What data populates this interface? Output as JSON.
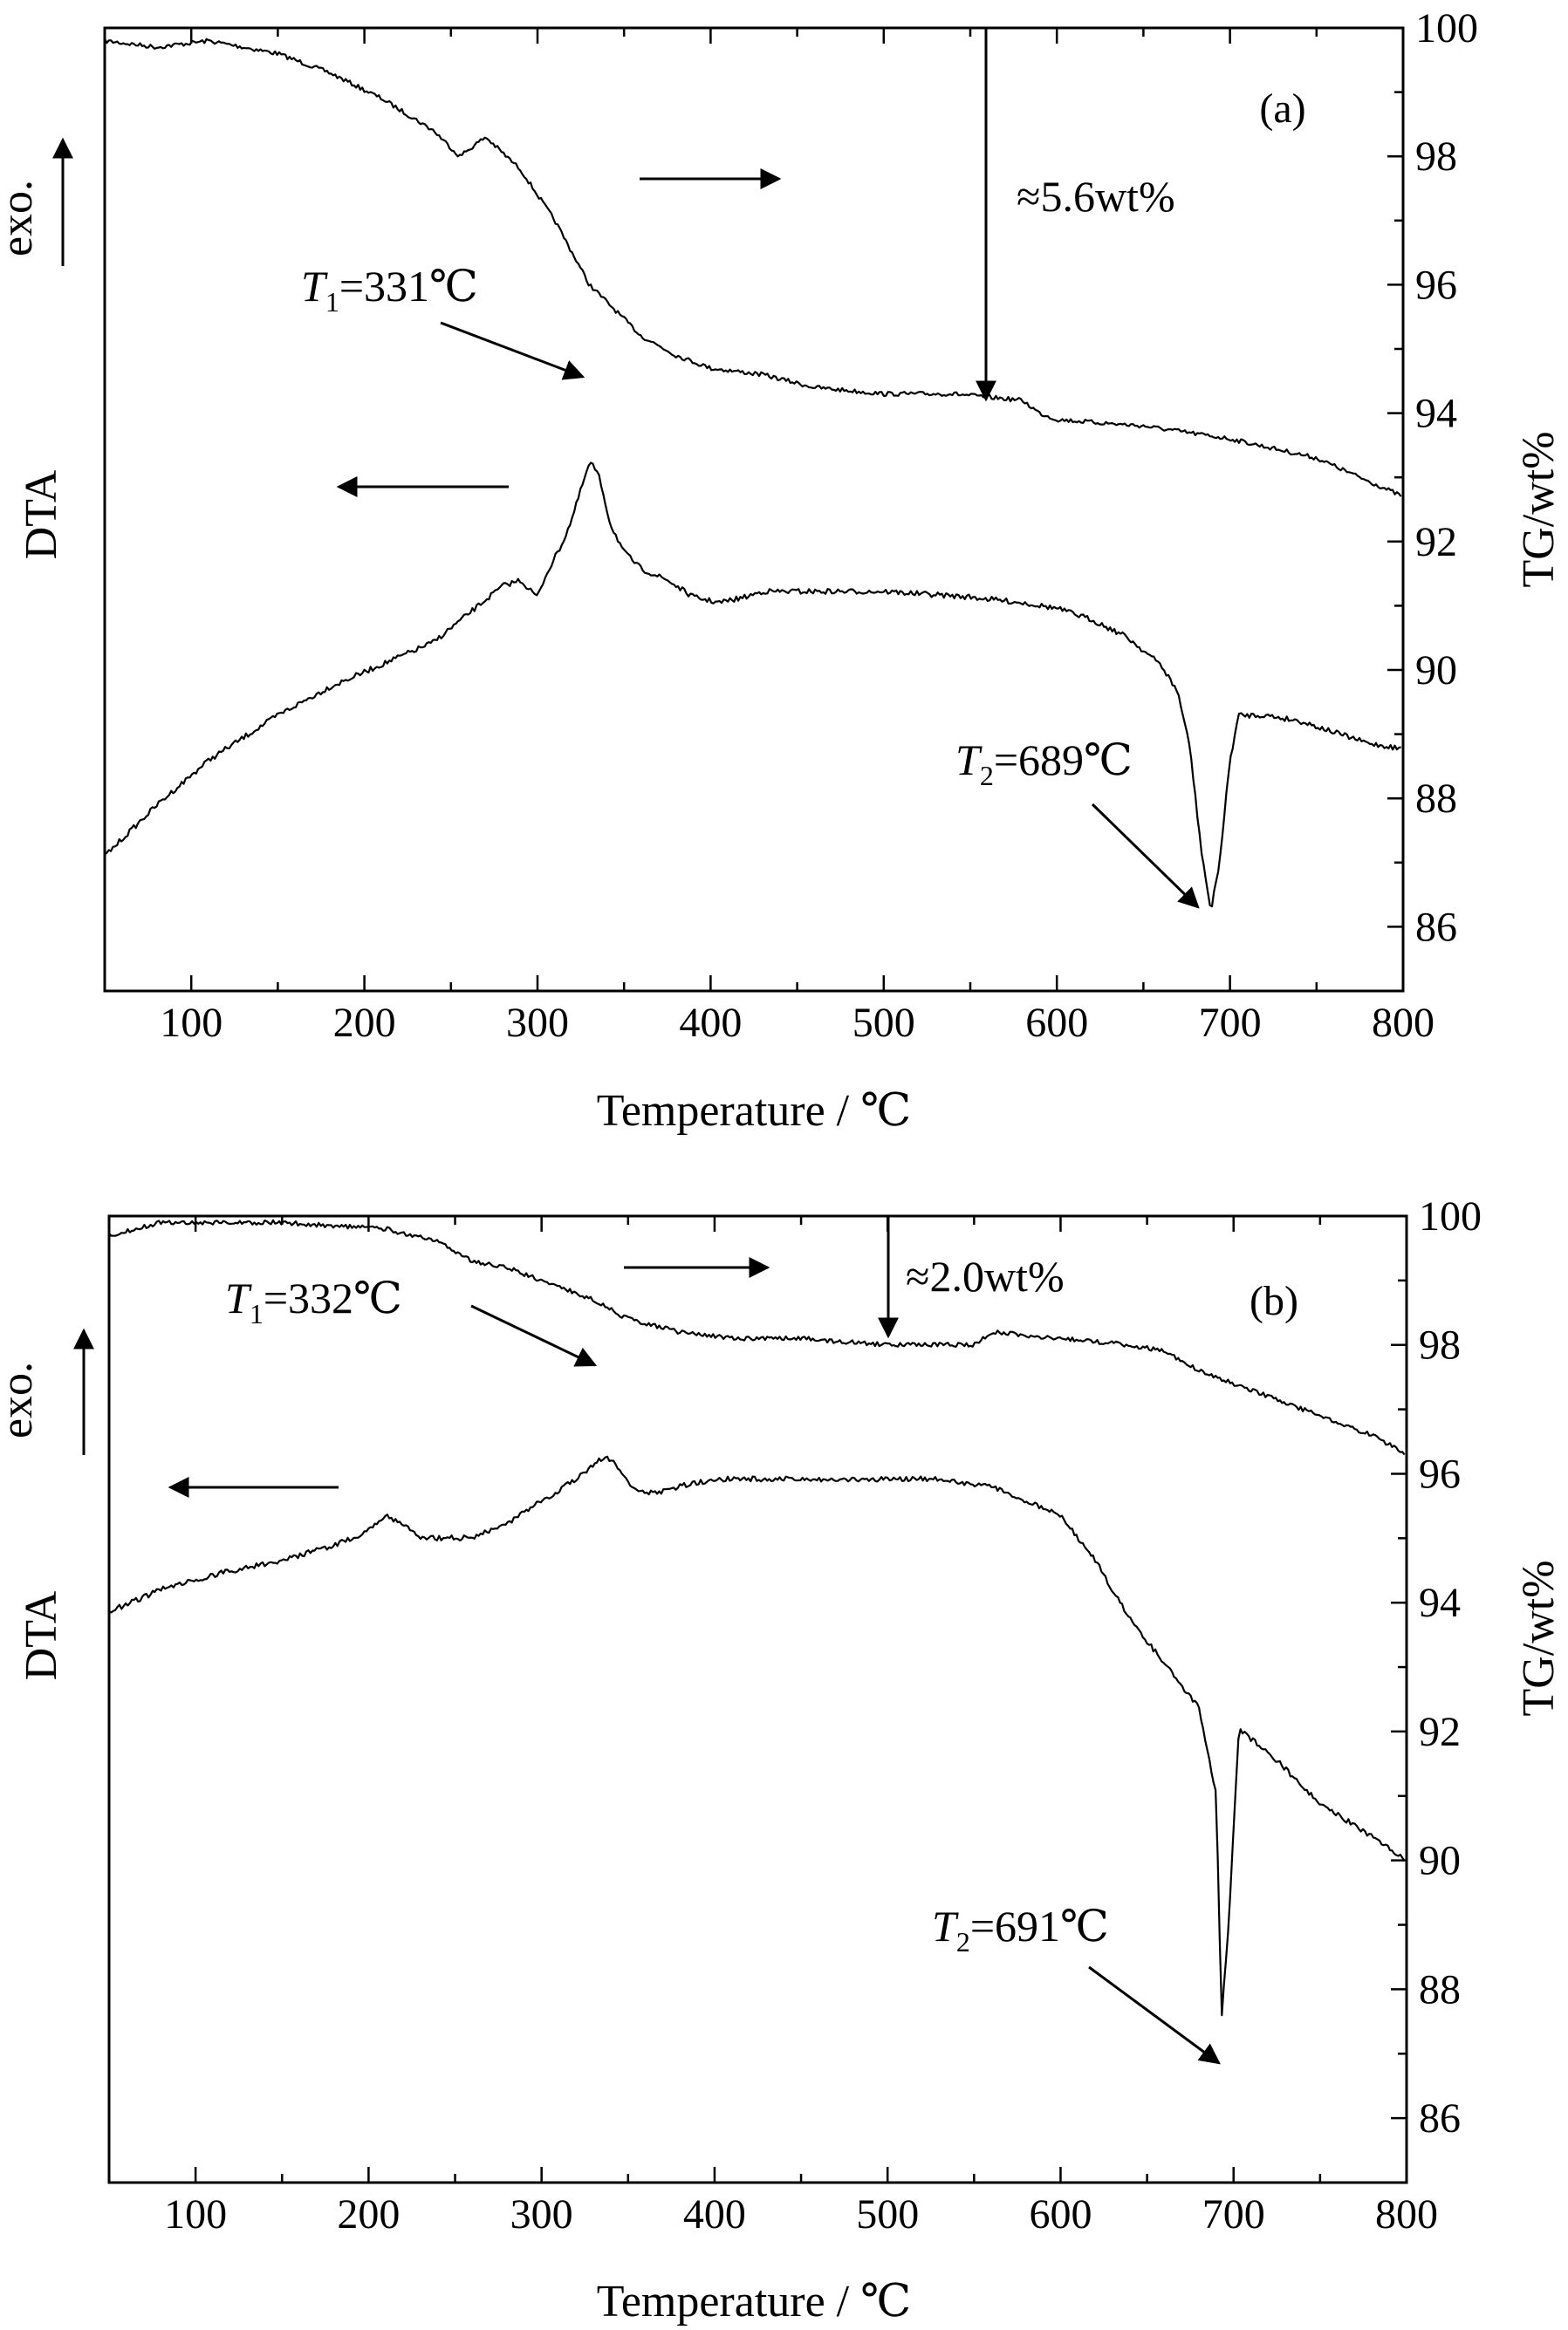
{
  "colors": {
    "line": "#000000",
    "background": "#ffffff"
  },
  "chart_data": [
    {
      "type": "line",
      "panel_label": "(a)",
      "xlabel": "Temperature / ℃",
      "ylabel_left": "DTA",
      "exo_label": "exo.",
      "ylabel_right": "TG/wt%",
      "xlim": [
        50,
        800
      ],
      "ylim_right": [
        85,
        100
      ],
      "x_ticks": [
        100,
        200,
        300,
        400,
        500,
        600,
        700,
        800
      ],
      "right_ticks": [
        86,
        88,
        90,
        92,
        94,
        96,
        98,
        100
      ],
      "dta_range": [
        0,
        100
      ],
      "series": [
        {
          "axis": "right",
          "points": [
            [
              50,
              99.8
            ],
            [
              80,
              99.7
            ],
            [
              110,
              99.8
            ],
            [
              150,
              99.6
            ],
            [
              180,
              99.3
            ],
            [
              210,
              98.9
            ],
            [
              240,
              98.4
            ],
            [
              255,
              98.0
            ],
            [
              270,
              98.3
            ],
            [
              290,
              97.8
            ],
            [
              310,
              97.0
            ],
            [
              330,
              96.0
            ],
            [
              345,
              95.6
            ],
            [
              360,
              95.2
            ],
            [
              380,
              94.9
            ],
            [
              400,
              94.7
            ],
            [
              430,
              94.6
            ],
            [
              460,
              94.4
            ],
            [
              500,
              94.3
            ],
            [
              540,
              94.3
            ],
            [
              580,
              94.2
            ],
            [
              590,
              94.0
            ],
            [
              600,
              93.9
            ],
            [
              650,
              93.8
            ],
            [
              700,
              93.6
            ],
            [
              750,
              93.3
            ],
            [
              800,
              92.7
            ]
          ]
        },
        {
          "axis": "left",
          "points": [
            [
              50,
              13
            ],
            [
              80,
              22
            ],
            [
              110,
              30
            ],
            [
              150,
              38
            ],
            [
              180,
              43
            ],
            [
              210,
              47
            ],
            [
              240,
              51
            ],
            [
              260,
              56
            ],
            [
              280,
              61
            ],
            [
              290,
              62
            ],
            [
              300,
              59
            ],
            [
              305,
              63
            ],
            [
              315,
              69
            ],
            [
              320,
              73
            ],
            [
              328,
              81
            ],
            [
              331,
              83
            ],
            [
              336,
              80
            ],
            [
              342,
              72
            ],
            [
              350,
              67
            ],
            [
              360,
              64
            ],
            [
              375,
              62
            ],
            [
              390,
              59
            ],
            [
              405,
              58
            ],
            [
              420,
              59
            ],
            [
              430,
              60
            ],
            [
              450,
              60
            ],
            [
              500,
              60
            ],
            [
              550,
              59
            ],
            [
              580,
              58
            ],
            [
              600,
              57
            ],
            [
              620,
              55
            ],
            [
              640,
              52
            ],
            [
              660,
              47
            ],
            [
              670,
              42
            ],
            [
              677,
              32
            ],
            [
              683,
              15
            ],
            [
              689,
              3
            ],
            [
              694,
              12
            ],
            [
              700,
              30
            ],
            [
              705,
              38
            ],
            [
              720,
              38
            ],
            [
              740,
              37
            ],
            [
              760,
              35
            ],
            [
              780,
              33
            ],
            [
              800,
              32
            ]
          ]
        }
      ],
      "annotations": [
        {
          "text_main": "T",
          "text_sub": "1",
          "text_rest": "=331℃",
          "x": 331,
          "axis": "left",
          "y": 83
        },
        {
          "text_main": "T",
          "text_sub": "2",
          "text_rest": "=689℃",
          "x": 689,
          "axis": "left",
          "y": 3
        },
        {
          "text": "≈5.6wt%",
          "x": 560,
          "axis": "right",
          "y": 94.2
        }
      ]
    },
    {
      "type": "line",
      "panel_label": "(b)",
      "xlabel": "Temperature / ℃",
      "ylabel_left": "DTA",
      "exo_label": "exo.",
      "ylabel_right": "TG/wt%",
      "xlim": [
        50,
        800
      ],
      "ylim_right": [
        85,
        100
      ],
      "x_ticks": [
        100,
        200,
        300,
        400,
        500,
        600,
        700,
        800
      ],
      "right_ticks": [
        86,
        88,
        90,
        92,
        94,
        96,
        98,
        100
      ],
      "dta_range": [
        0,
        100
      ],
      "series": [
        {
          "axis": "right",
          "points": [
            [
              50,
              99.7
            ],
            [
              80,
              99.9
            ],
            [
              150,
              99.9
            ],
            [
              210,
              99.8
            ],
            [
              240,
              99.6
            ],
            [
              260,
              99.3
            ],
            [
              280,
              99.2
            ],
            [
              300,
              99.0
            ],
            [
              330,
              98.7
            ],
            [
              350,
              98.4
            ],
            [
              380,
              98.2
            ],
            [
              410,
              98.1
            ],
            [
              450,
              98.1
            ],
            [
              500,
              98.0
            ],
            [
              550,
              98.0
            ],
            [
              560,
              98.2
            ],
            [
              600,
              98.1
            ],
            [
              640,
              98.0
            ],
            [
              660,
              97.9
            ],
            [
              680,
              97.6
            ],
            [
              700,
              97.4
            ],
            [
              720,
              97.2
            ],
            [
              750,
              96.9
            ],
            [
              780,
              96.6
            ],
            [
              800,
              96.3
            ]
          ]
        },
        {
          "axis": "left",
          "points": [
            [
              50,
              63
            ],
            [
              80,
              66
            ],
            [
              110,
              68
            ],
            [
              150,
              70
            ],
            [
              180,
              72
            ],
            [
              200,
              74
            ],
            [
              210,
              76
            ],
            [
              220,
              75
            ],
            [
              230,
              73
            ],
            [
              260,
              73
            ],
            [
              280,
              75
            ],
            [
              300,
              78
            ],
            [
              320,
              81
            ],
            [
              330,
              83
            ],
            [
              336,
              84
            ],
            [
              343,
              83
            ],
            [
              352,
              80
            ],
            [
              365,
              79
            ],
            [
              380,
              80
            ],
            [
              400,
              81
            ],
            [
              450,
              81
            ],
            [
              500,
              81
            ],
            [
              530,
              81
            ],
            [
              560,
              80
            ],
            [
              600,
              76
            ],
            [
              620,
              70
            ],
            [
              640,
              62
            ],
            [
              660,
              56
            ],
            [
              680,
              50
            ],
            [
              690,
              38
            ],
            [
              693,
              8
            ],
            [
              697,
              20
            ],
            [
              703,
              47
            ],
            [
              720,
              44
            ],
            [
              750,
              37
            ],
            [
              770,
              34
            ],
            [
              790,
              31
            ],
            [
              800,
              29
            ]
          ]
        }
      ],
      "annotations": [
        {
          "text_main": "T",
          "text_sub": "1",
          "text_rest": "=332℃",
          "x": 332,
          "axis": "left",
          "y": 83
        },
        {
          "text_main": "T",
          "text_sub": "2",
          "text_rest": "=691℃",
          "x": 691,
          "axis": "left",
          "y": 8
        },
        {
          "text": "≈2.0wt%",
          "x": 500,
          "axis": "right",
          "y": 98.0
        }
      ]
    }
  ]
}
